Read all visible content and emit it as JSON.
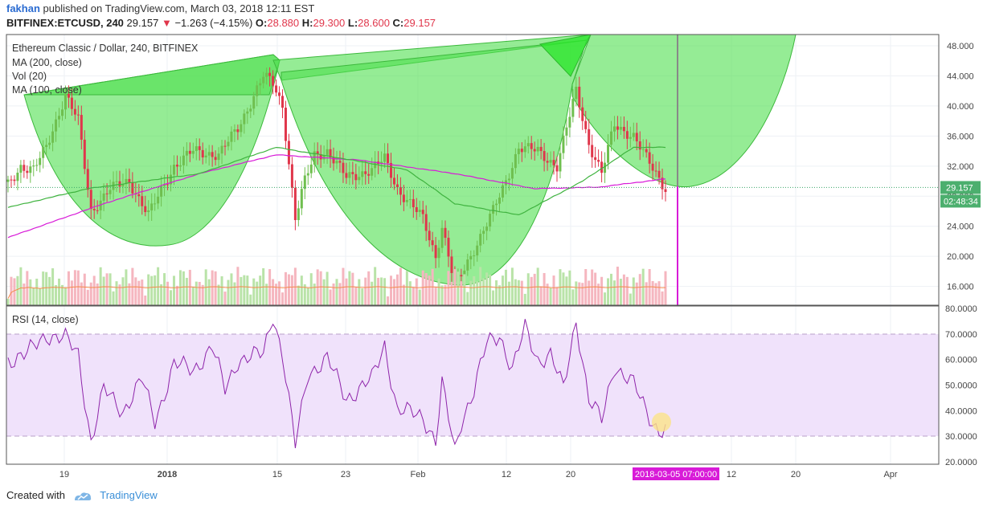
{
  "header": {
    "author": "fakhan",
    "published_text": "published on TradingView.com, March 03, 2018 12:11 EST",
    "symbol": "BITFINEX:ETCUSD, 240",
    "last": "29.157",
    "change": "−1.263 (−4.15%)",
    "o_label": "O:",
    "o_value": "28.880",
    "h_label": "H:",
    "h_value": "29.300",
    "l_label": "L:",
    "l_value": "28.600",
    "c_label": "C:",
    "c_value": "29.157"
  },
  "legend": {
    "title": "Ethereum Classic / Dollar, 240, BITFINEX",
    "ma200": "MA (200, close)",
    "vol": "Vol (20)",
    "ma100": "MA (100, close)",
    "rsi": "RSI (14, close)"
  },
  "price_badge": "29.157",
  "time_badge": "02:48:34",
  "cursor_date": "2018-03-05 07:00:00",
  "footer": {
    "created": "Created with",
    "brand": "TradingView"
  },
  "colors": {
    "up": "#6fbf4f",
    "down": "#e0364b",
    "ma200": "#d81bd8",
    "ma100": "#3fb33f",
    "rsi": "#8e24aa",
    "rsi_band": "#f0e2fb",
    "pattern_fill": "#4ee04e",
    "volume_ma": "#f58a4b",
    "cursor": "#d81bd8",
    "price_badge": "#4caf6e"
  },
  "chart_data": [
    {
      "type": "candlestick",
      "title": "Ethereum Classic / Dollar, 240, BITFINEX",
      "x_ticks": [
        "19",
        "2018",
        "15",
        "23",
        "Feb",
        "12",
        "20",
        "12",
        "20",
        "Apr"
      ],
      "ylim": [
        13.5,
        49.5
      ],
      "y_ticks": [
        "16.000",
        "20.000",
        "24.000",
        "28.000",
        "32.000",
        "36.000",
        "40.000",
        "44.000",
        "48.000"
      ],
      "price_anchors": [
        [
          0,
          29.5
        ],
        [
          4,
          32
        ],
        [
          8,
          31.5
        ],
        [
          12,
          34.5
        ],
        [
          18,
          41.5
        ],
        [
          22,
          38
        ],
        [
          26,
          26
        ],
        [
          32,
          29
        ],
        [
          38,
          30
        ],
        [
          44,
          25.5
        ],
        [
          52,
          32
        ],
        [
          58,
          34
        ],
        [
          66,
          33.5
        ],
        [
          72,
          37
        ],
        [
          80,
          44
        ],
        [
          83,
          43
        ],
        [
          86,
          40
        ],
        [
          90,
          25
        ],
        [
          93,
          30
        ],
        [
          96,
          33.5
        ],
        [
          100,
          34
        ],
        [
          106,
          30.5
        ],
        [
          114,
          31.5
        ],
        [
          118,
          33
        ],
        [
          122,
          29
        ],
        [
          130,
          25
        ],
        [
          134,
          20
        ],
        [
          136,
          24
        ],
        [
          140,
          16
        ],
        [
          142,
          17.5
        ],
        [
          146,
          21
        ],
        [
          152,
          26
        ],
        [
          156,
          30
        ],
        [
          160,
          34.5
        ],
        [
          166,
          34
        ],
        [
          172,
          32
        ],
        [
          178,
          42
        ],
        [
          182,
          35
        ],
        [
          186,
          31
        ],
        [
          190,
          37.5
        ],
        [
          196,
          36
        ],
        [
          200,
          33
        ],
        [
          206,
          29.1
        ]
      ],
      "series": [
        {
          "name": "MA (200, close)",
          "anchors": [
            [
              0,
              22.5
            ],
            [
              30,
              27
            ],
            [
              60,
              31
            ],
            [
              84,
              33.5
            ],
            [
              110,
              32.8
            ],
            [
              140,
              31
            ],
            [
              165,
              29
            ],
            [
              185,
              29.2
            ],
            [
              206,
              30.3
            ]
          ]
        },
        {
          "name": "MA (100, close)",
          "anchors": [
            [
              0,
              26.5
            ],
            [
              25,
              29
            ],
            [
              60,
              31
            ],
            [
              84,
              34.5
            ],
            [
              105,
              33
            ],
            [
              125,
              31.5
            ],
            [
              140,
              27
            ],
            [
              160,
              25.5
            ],
            [
              180,
              30
            ],
            [
              196,
              34.5
            ],
            [
              206,
              34.5
            ]
          ]
        },
        {
          "name": "Vol (20)"
        }
      ]
    },
    {
      "type": "line",
      "title": "RSI (14, close)",
      "ylim": [
        19,
        81
      ],
      "y_ticks": [
        "20.0000",
        "30.0000",
        "40.0000",
        "50.0000",
        "60.0000",
        "70.0000",
        "80.0000"
      ],
      "band": [
        30,
        70
      ],
      "series": [
        {
          "name": "RSI (14, close)",
          "anchors": [
            [
              0,
              60
            ],
            [
              6,
              62
            ],
            [
              12,
              70
            ],
            [
              18,
              68
            ],
            [
              22,
              62
            ],
            [
              26,
              28
            ],
            [
              30,
              48
            ],
            [
              36,
              40
            ],
            [
              42,
              52
            ],
            [
              46,
              36
            ],
            [
              52,
              58
            ],
            [
              58,
              56
            ],
            [
              64,
              65
            ],
            [
              68,
              48
            ],
            [
              72,
              60
            ],
            [
              80,
              62
            ],
            [
              83,
              78
            ],
            [
              86,
              62
            ],
            [
              90,
              26
            ],
            [
              94,
              55
            ],
            [
              100,
              60
            ],
            [
              106,
              45
            ],
            [
              114,
              52
            ],
            [
              118,
              66
            ],
            [
              122,
              40
            ],
            [
              130,
              38
            ],
            [
              134,
              28
            ],
            [
              136,
              50
            ],
            [
              140,
              24
            ],
            [
              142,
              36
            ],
            [
              146,
              48
            ],
            [
              150,
              66
            ],
            [
              154,
              70
            ],
            [
              158,
              56
            ],
            [
              162,
              72
            ],
            [
              166,
              60
            ],
            [
              170,
              62
            ],
            [
              174,
              48
            ],
            [
              178,
              76
            ],
            [
              182,
              44
            ],
            [
              186,
              36
            ],
            [
              190,
              58
            ],
            [
              196,
              50
            ],
            [
              200,
              40
            ],
            [
              204,
              32
            ],
            [
              206,
              33
            ]
          ]
        }
      ]
    }
  ]
}
